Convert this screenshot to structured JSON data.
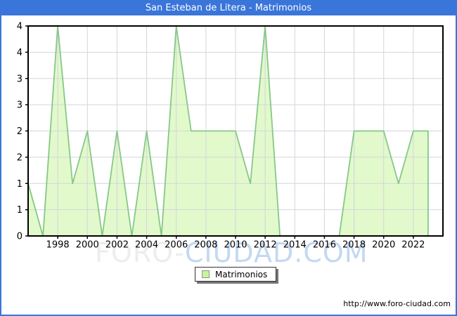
{
  "window": {
    "title": "San Esteban de Litera - Matrimonios"
  },
  "chart_data": {
    "type": "area",
    "title": "San Esteban de Litera - Matrimonios",
    "x": [
      1996,
      1997,
      1998,
      1999,
      2000,
      2001,
      2002,
      2003,
      2004,
      2005,
      2006,
      2007,
      2008,
      2009,
      2010,
      2011,
      2012,
      2013,
      2014,
      2015,
      2016,
      2017,
      2018,
      2019,
      2020,
      2021,
      2022,
      2023
    ],
    "series": [
      {
        "name": "Matrimonios",
        "values": [
          1,
          0,
          4,
          1,
          2,
          0,
          2,
          0,
          2,
          0,
          4,
          2,
          2,
          2,
          2,
          1,
          4,
          0,
          0,
          0,
          0,
          0,
          2,
          2,
          2,
          1,
          2,
          2
        ]
      }
    ],
    "xlim": [
      1996,
      2024
    ],
    "ylim": [
      0,
      4
    ],
    "ytick_step": 0.5,
    "ytick_labels_top_to_bottom": [
      "4",
      "4",
      "3",
      "3",
      "2",
      "2",
      "1",
      "1",
      "0"
    ],
    "xtick_labels": [
      "1998",
      "2000",
      "2002",
      "2004",
      "2006",
      "2008",
      "2010",
      "2012",
      "2014",
      "2016",
      "2018",
      "2020",
      "2022"
    ],
    "grid": true,
    "legend_position": "bottom"
  },
  "legend": {
    "label": "Matrimonios"
  },
  "watermark": {
    "part1": "FORO",
    "separator": "-",
    "part2": "CIUDAD.COM"
  },
  "footer": {
    "url": "http://www.foro-ciudad.com"
  },
  "colors": {
    "titlebar_bg": "#3A75D9",
    "frame_border": "#3A75D9",
    "title_text": "#FFFFFF",
    "area_fill": "#E2F9CB",
    "line": "#86C888",
    "grid": "#D4D4DE",
    "axis": "#000000",
    "tick_label": "#000000",
    "legend_swatch": "#C8F49B",
    "watermark_gray": "#EDEDED",
    "watermark_blue": "#C3D8F2"
  }
}
